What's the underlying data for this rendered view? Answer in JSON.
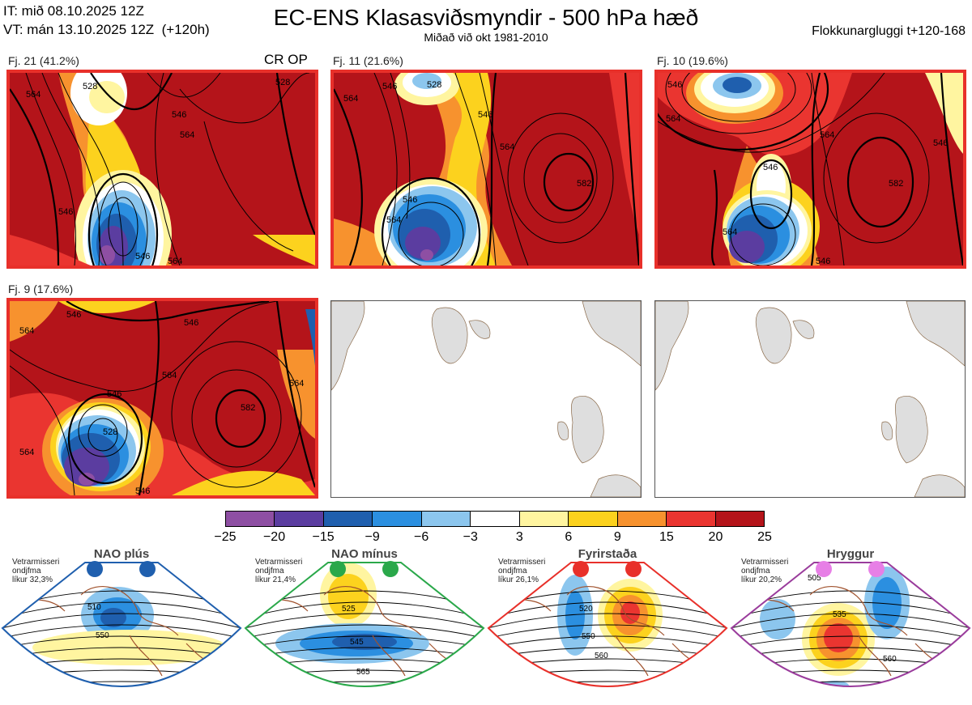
{
  "header": {
    "init_time": "IT: mið 08.10.2025 12Z",
    "valid_time": "VT: mán 13.10.2025 12Z  (+120h)",
    "title": "EC-ENS Klasasviðsmyndir - 500 hPa hæð",
    "subtitle": "Miðað við okt 1981-2010",
    "window": "Flokkunargluggi t+120-168"
  },
  "clusters": [
    {
      "label": "Fj. 21 (41.2%)",
      "tag": "CR OP",
      "contours": [
        "564",
        "546",
        "528",
        "546",
        "564",
        "564",
        "546",
        "528"
      ]
    },
    {
      "label": "Fj. 11 (21.6%)",
      "tag": "",
      "contours": [
        "564",
        "546",
        "528",
        "546",
        "564",
        "582",
        "546",
        "564"
      ]
    },
    {
      "label": "Fj. 10 (19.6%)",
      "tag": "",
      "contours": [
        "546",
        "564",
        "546",
        "582",
        "546",
        "564",
        "564",
        "546"
      ]
    },
    {
      "label": "Fj. 9 (17.6%)",
      "tag": "",
      "contours": [
        "564",
        "546",
        "546",
        "564",
        "546",
        "582",
        "528",
        "546",
        "564",
        "564"
      ]
    }
  ],
  "colorbar": {
    "colors": [
      "#8e4fa3",
      "#5b3da0",
      "#1f5fae",
      "#2b8fe0",
      "#8cc6ee",
      "#ffffff",
      "#fff5a0",
      "#fcd21e",
      "#f7922e",
      "#ea3530",
      "#b4141a"
    ],
    "ticks": [
      "−25",
      "−20",
      "−15",
      "−9",
      "−6",
      "−3",
      "3",
      "6",
      "9",
      "15",
      "20",
      "25"
    ]
  },
  "regimes": [
    {
      "name": "NAO plús",
      "note": [
        "Vetrarmisseri",
        "ondjfma",
        "líkur 32,3%"
      ],
      "color": "#1f5fae",
      "contours": [
        "510",
        "550"
      ]
    },
    {
      "name": "NAO mínus",
      "note": [
        "Vetrarmisseri",
        "ondjfma",
        "líkur 21,4%"
      ],
      "color": "#2aa84a",
      "contours": [
        "525",
        "545",
        "565"
      ]
    },
    {
      "name": "Fyrirstaða",
      "note": [
        "Vetrarmisseri",
        "ondjfma",
        "líkur 26,1%"
      ],
      "color": "#e8302a",
      "contours": [
        "520",
        "550",
        "560"
      ]
    },
    {
      "name": "Hryggur",
      "note": [
        "Vetrarmisseri",
        "ondjfma",
        "líkur 20,2%"
      ],
      "color": "#9a3c9c",
      "contours": [
        "505",
        "535",
        "560"
      ]
    }
  ]
}
